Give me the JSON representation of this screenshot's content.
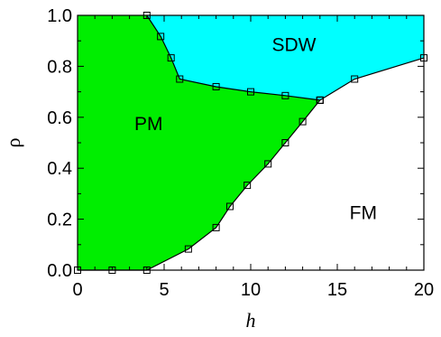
{
  "chart_data": {
    "type": "scatter",
    "subtype": "phase-diagram",
    "xlabel": "h",
    "ylabel": "ρ",
    "xlim": [
      0,
      20
    ],
    "ylim": [
      0.0,
      1.0
    ],
    "x_ticks": [
      "0",
      "5",
      "10",
      "15",
      "20"
    ],
    "y_ticks": [
      "0.0",
      "0.2",
      "0.4",
      "0.6",
      "0.8",
      "1.0"
    ],
    "grid": false,
    "regions": [
      {
        "label": "PM",
        "color": "#00ee00",
        "label_at": [
          4.1,
          0.55
        ]
      },
      {
        "label": "SDW",
        "color": "#00ffff",
        "label_at": [
          12.5,
          0.86
        ]
      },
      {
        "label": "FM",
        "color": "#ffffff",
        "label_at": [
          16.5,
          0.2
        ]
      }
    ],
    "series": [
      {
        "role": "PM-FM boundary",
        "x": [
          0,
          2,
          4,
          6.4,
          8,
          8.8,
          9.8,
          11,
          12,
          13,
          14
        ],
        "y": [
          0.0,
          0.0,
          0.0,
          0.083,
          0.167,
          0.25,
          0.333,
          0.417,
          0.5,
          0.583,
          0.667
        ]
      },
      {
        "role": "PM-SDW boundary",
        "x": [
          4,
          4.8,
          5.4,
          5.9,
          8,
          10,
          12,
          14
        ],
        "y": [
          1.0,
          0.917,
          0.833,
          0.75,
          0.72,
          0.7,
          0.685,
          0.667
        ]
      },
      {
        "role": "SDW-FM boundary",
        "x": [
          14,
          16,
          20
        ],
        "y": [
          0.667,
          0.75,
          0.833
        ]
      }
    ]
  }
}
